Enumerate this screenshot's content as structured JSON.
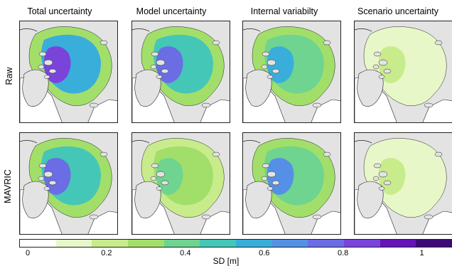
{
  "columns": [
    {
      "title": "Total uncertainty"
    },
    {
      "title": "Model uncertainty"
    },
    {
      "title": "Internal variabilty"
    },
    {
      "title": "Scenario uncertainty"
    }
  ],
  "rows": [
    {
      "label": "Raw"
    },
    {
      "label": "MAVRIC"
    }
  ],
  "colorbar": {
    "label": "SD [m]",
    "ticks": [
      "0",
      "0.2",
      "0.4",
      "0.6",
      "0.8",
      "1"
    ],
    "tick_values": [
      0,
      0.2,
      0.4,
      0.6,
      0.8,
      1
    ],
    "range": [
      0,
      1.1
    ],
    "colors": [
      "#ffffff",
      "#e8f7c8",
      "#c8ec8c",
      "#a2df6a",
      "#6fd48f",
      "#44c7b7",
      "#3aaedb",
      "#5590e6",
      "#6b6de5",
      "#7a44db",
      "#6514b7",
      "#3c0a77"
    ]
  },
  "map_levels": [
    {
      "outer": 0.3,
      "mid": 0.55,
      "inner": 0.85
    },
    {
      "outer": 0.3,
      "mid": 0.5,
      "inner": 0.8
    },
    {
      "outer": 0.3,
      "mid": 0.45,
      "inner": 0.55
    },
    {
      "outer": 0.1,
      "mid": 0.15,
      "inner": 0.2
    },
    {
      "outer": 0.3,
      "mid": 0.5,
      "inner": 0.75
    },
    {
      "outer": 0.25,
      "mid": 0.35,
      "inner": 0.45
    },
    {
      "outer": 0.3,
      "mid": 0.45,
      "inner": 0.7
    },
    {
      "outer": 0.1,
      "mid": 0.15,
      "inner": 0.2
    }
  ],
  "land_color": "#e3e3e3",
  "open_ocean_color": "#ffffff"
}
